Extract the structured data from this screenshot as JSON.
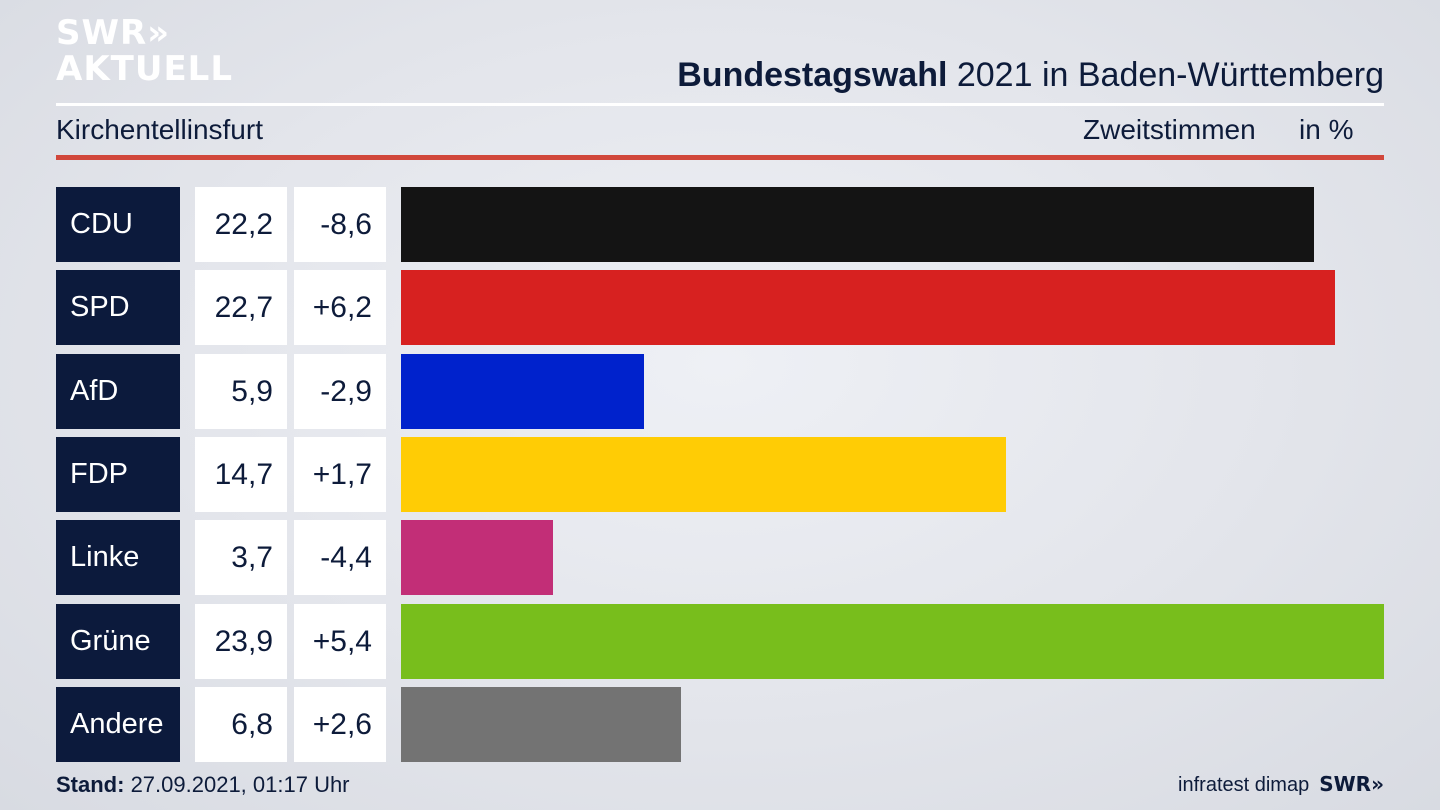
{
  "brand": {
    "line1": "SWR»",
    "line2": "AKTUELL"
  },
  "header": {
    "title_bold": "Bundestagswahl",
    "title_rest": " 2021 in Baden-Württemberg",
    "region": "Kirchentellinsfurt",
    "measure": "Zweitstimmen",
    "unit": "in %"
  },
  "chart_data": {
    "type": "bar",
    "orientation": "horizontal",
    "categories": [
      "CDU",
      "SPD",
      "AfD",
      "FDP",
      "Linke",
      "Grüne",
      "Andere"
    ],
    "values": [
      22.2,
      22.7,
      5.9,
      14.7,
      3.7,
      23.9,
      6.8
    ],
    "changes": [
      -8.6,
      6.2,
      -2.9,
      1.7,
      -4.4,
      5.4,
      2.6
    ],
    "value_labels": [
      "22,2",
      "22,7",
      "5,9",
      "14,7",
      "3,7",
      "23,9",
      "6,8"
    ],
    "change_labels": [
      "-8,6",
      "+6,2",
      "-2,9",
      "+1,7",
      "-4,4",
      "+5,4",
      "+2,6"
    ],
    "colors": [
      "#141414",
      "#d72120",
      "#0022cc",
      "#ffcc05",
      "#c22e77",
      "#78be1c",
      "#737373"
    ],
    "xlim": [
      0,
      23.9
    ]
  },
  "footer": {
    "stand_label": "Stand:",
    "stand_value": " 27.09.2021, 01:17 Uhr",
    "source": "infratest dimap",
    "source_brand": "SWR»"
  }
}
